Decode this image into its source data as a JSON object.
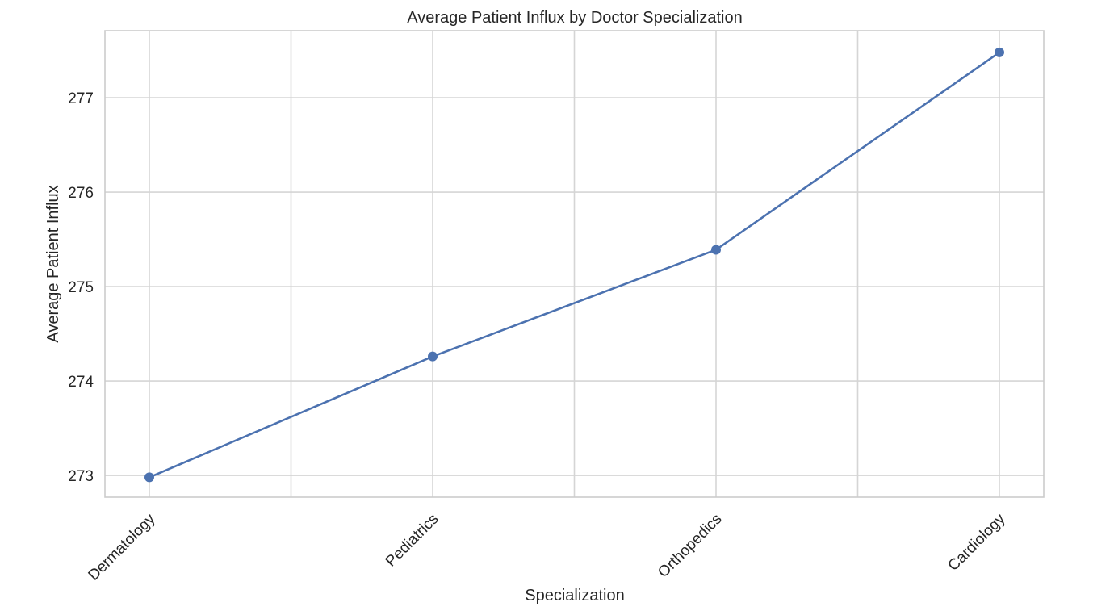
{
  "chart_data": {
    "type": "line",
    "title": "Average Patient Influx by Doctor Specialization",
    "xlabel": "Specialization",
    "ylabel": "Average Patient Influx",
    "categories": [
      "Dermatology",
      "Pediatrics",
      "Orthopedics",
      "Cardiology"
    ],
    "series": [
      {
        "values": [
          272.98,
          274.26,
          275.39,
          277.48
        ],
        "color": "#4c72b0",
        "marker": "circle"
      }
    ],
    "x_ticks": [
      "Dermatology",
      "",
      "Pediatrics",
      "",
      "Orthopedics",
      "",
      "Cardiology"
    ],
    "y_ticks": [
      273,
      274,
      275,
      276,
      277
    ],
    "ylim": [
      272.77,
      277.71
    ],
    "grid": true,
    "legend": "none",
    "style": {
      "grid_color": "#d5d5d5",
      "frame_color": "#cccccc",
      "text_color": "#262626"
    }
  }
}
